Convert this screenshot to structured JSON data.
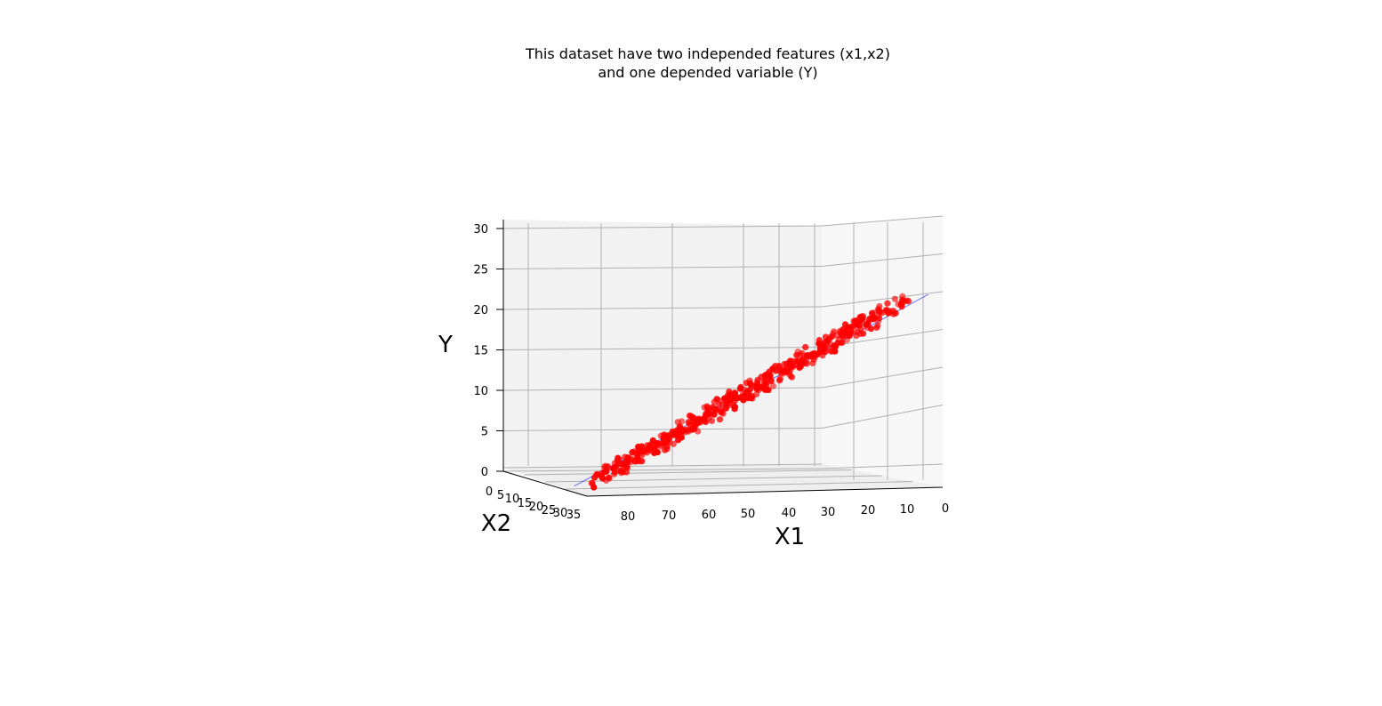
{
  "chart_data": {
    "type": "scatter",
    "projection": "3d",
    "title_lines": [
      "This dataset have two independed features (x1,x2)",
      "and one depended variable (Y)"
    ],
    "xlabel": "X1",
    "ylabel": "X2",
    "zlabel": "Y",
    "xlim": [
      0,
      90
    ],
    "ylim": [
      0,
      35
    ],
    "zlim": [
      0,
      30
    ],
    "x_ticks": [
      "80",
      "70",
      "60",
      "50",
      "40",
      "30",
      "20",
      "10",
      "0"
    ],
    "y_ticks": [
      "0",
      "5",
      "10",
      "15",
      "20",
      "25",
      "30",
      "35"
    ],
    "z_ticks": [
      "0",
      "5",
      "10",
      "15",
      "20",
      "25",
      "30"
    ],
    "grid": true,
    "point_color": "#ff0000",
    "line_color": "#0000ff",
    "relationship": "Y increases roughly linearly from about 0 at X1=85 to about 20 at X1=5",
    "series": [
      {
        "kind": "points",
        "points": [
          {
            "x": 85,
            "y": 18,
            "z": 0.6
          },
          {
            "x": 83,
            "y": 18,
            "z": 1.2
          },
          {
            "x": 82,
            "y": 18,
            "z": 0.9
          },
          {
            "x": 80,
            "y": 18,
            "z": 1.6
          },
          {
            "x": 79,
            "y": 18,
            "z": 2.1
          },
          {
            "x": 78,
            "y": 18,
            "z": 1.7
          },
          {
            "x": 77,
            "y": 18,
            "z": 2.6
          },
          {
            "x": 76,
            "y": 18,
            "z": 2.3
          },
          {
            "x": 75,
            "y": 18,
            "z": 3.1
          },
          {
            "x": 74,
            "y": 18,
            "z": 2.8
          },
          {
            "x": 73,
            "y": 18,
            "z": 3.4
          },
          {
            "x": 72,
            "y": 18,
            "z": 3.9
          },
          {
            "x": 71,
            "y": 18,
            "z": 3.5
          },
          {
            "x": 70,
            "y": 18,
            "z": 4.3
          },
          {
            "x": 69,
            "y": 18,
            "z": 4.6
          },
          {
            "x": 68,
            "y": 18,
            "z": 4.1
          },
          {
            "x": 67,
            "y": 18,
            "z": 5.0
          },
          {
            "x": 66,
            "y": 18,
            "z": 5.4
          },
          {
            "x": 65,
            "y": 18,
            "z": 5.1
          },
          {
            "x": 64,
            "y": 18,
            "z": 5.9
          },
          {
            "x": 63,
            "y": 18,
            "z": 6.2
          },
          {
            "x": 62,
            "y": 18,
            "z": 5.8
          },
          {
            "x": 61,
            "y": 18,
            "z": 6.7
          },
          {
            "x": 60,
            "y": 18,
            "z": 7.0
          },
          {
            "x": 59,
            "y": 18,
            "z": 6.6
          },
          {
            "x": 58,
            "y": 18,
            "z": 7.5
          },
          {
            "x": 57,
            "y": 18,
            "z": 7.9
          },
          {
            "x": 56,
            "y": 18,
            "z": 7.4
          },
          {
            "x": 55,
            "y": 18,
            "z": 8.3
          },
          {
            "x": 54,
            "y": 18,
            "z": 8.6
          },
          {
            "x": 53,
            "y": 18,
            "z": 8.2
          },
          {
            "x": 52,
            "y": 18,
            "z": 9.1
          },
          {
            "x": 51,
            "y": 18,
            "z": 9.5
          },
          {
            "x": 50,
            "y": 18,
            "z": 9.0
          },
          {
            "x": 49,
            "y": 18,
            "z": 9.9
          },
          {
            "x": 48,
            "y": 18,
            "z": 10.3
          },
          {
            "x": 47,
            "y": 18,
            "z": 9.8
          },
          {
            "x": 46,
            "y": 18,
            "z": 10.7
          },
          {
            "x": 45,
            "y": 18,
            "z": 11.1
          },
          {
            "x": 44,
            "y": 18,
            "z": 10.6
          },
          {
            "x": 43,
            "y": 18,
            "z": 11.5
          },
          {
            "x": 42,
            "y": 18,
            "z": 11.8
          },
          {
            "x": 41,
            "y": 18,
            "z": 11.4
          },
          {
            "x": 40,
            "y": 18,
            "z": 12.3
          },
          {
            "x": 39,
            "y": 18,
            "z": 12.7
          },
          {
            "x": 38,
            "y": 18,
            "z": 12.1
          },
          {
            "x": 37,
            "y": 18,
            "z": 13.1
          },
          {
            "x": 36,
            "y": 18,
            "z": 13.5
          },
          {
            "x": 35,
            "y": 18,
            "z": 12.9
          },
          {
            "x": 34,
            "y": 18,
            "z": 13.9
          },
          {
            "x": 33,
            "y": 18,
            "z": 14.3
          },
          {
            "x": 32,
            "y": 18,
            "z": 13.8
          },
          {
            "x": 31,
            "y": 18,
            "z": 14.7
          },
          {
            "x": 30,
            "y": 18,
            "z": 15.0
          },
          {
            "x": 29,
            "y": 18,
            "z": 14.5
          },
          {
            "x": 28,
            "y": 18,
            "z": 15.5
          },
          {
            "x": 27,
            "y": 18,
            "z": 15.9
          },
          {
            "x": 26,
            "y": 18,
            "z": 15.3
          },
          {
            "x": 25,
            "y": 18,
            "z": 16.3
          },
          {
            "x": 24,
            "y": 18,
            "z": 16.6
          },
          {
            "x": 23,
            "y": 18,
            "z": 16.1
          },
          {
            "x": 22,
            "y": 18,
            "z": 17.1
          },
          {
            "x": 21,
            "y": 18,
            "z": 17.4
          },
          {
            "x": 20,
            "y": 18,
            "z": 16.9
          },
          {
            "x": 19,
            "y": 18,
            "z": 17.9
          },
          {
            "x": 18,
            "y": 18,
            "z": 18.2
          },
          {
            "x": 17,
            "y": 18,
            "z": 17.7
          },
          {
            "x": 16,
            "y": 18,
            "z": 18.6
          },
          {
            "x": 15,
            "y": 18,
            "z": 19.0
          },
          {
            "x": 14,
            "y": 18,
            "z": 18.5
          },
          {
            "x": 13,
            "y": 18,
            "z": 19.3
          },
          {
            "x": 12,
            "y": 18,
            "z": 19.6
          },
          {
            "x": 10,
            "y": 18,
            "z": 19.9
          },
          {
            "x": 8,
            "y": 18,
            "z": 20.3
          },
          {
            "x": 6,
            "y": 18,
            "z": 20.8
          }
        ]
      },
      {
        "kind": "regression-line",
        "points": [
          {
            "x": 90,
            "y": 18,
            "z": -0.3
          },
          {
            "x": 0,
            "y": 18,
            "z": 21.6
          }
        ]
      }
    ]
  }
}
